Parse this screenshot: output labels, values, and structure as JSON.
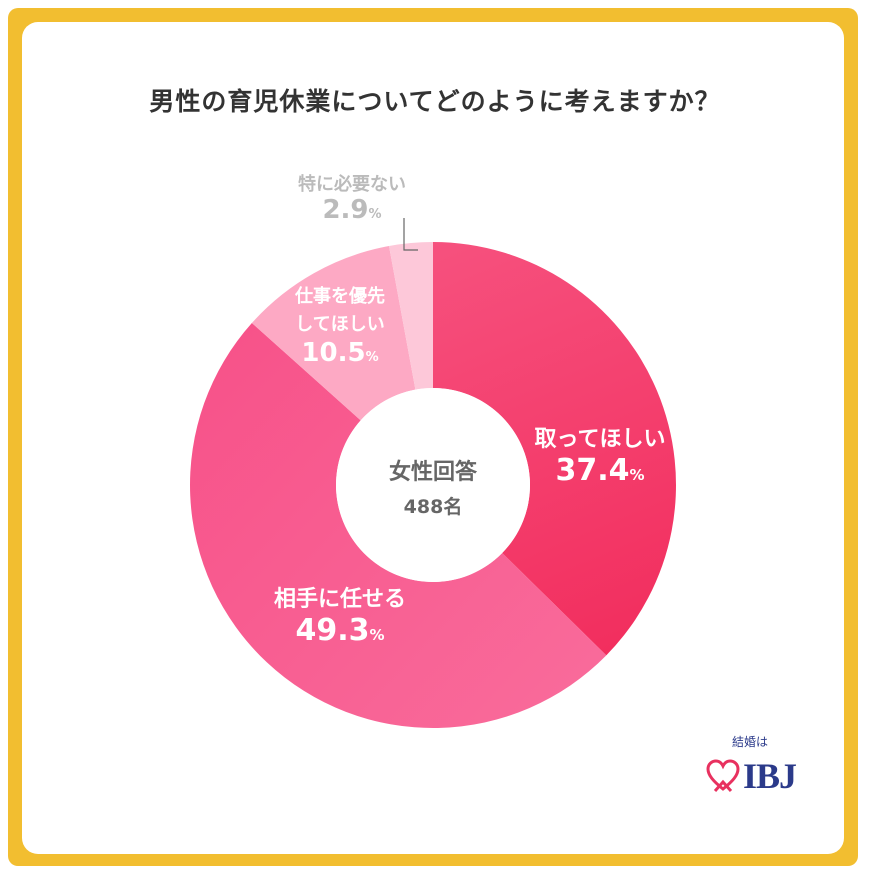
{
  "chart_data": {
    "type": "pie",
    "title": "男性の育児休業についてどのように考えますか？",
    "center_label": [
      "女性回答",
      "488名"
    ],
    "slices": [
      {
        "name_lines": [
          "取ってほしい"
        ],
        "value": 37.4,
        "value_text": "37.4",
        "color_light": "#F6517E",
        "color_dark": "#F22E5E"
      },
      {
        "name_lines": [
          "相手に任せる"
        ],
        "value": 49.3,
        "value_text": "49.3",
        "color_light": "#F96A9A",
        "color_dark": "#F7538A"
      },
      {
        "name_lines": [
          "仕事を優先",
          "してほしい"
        ],
        "value": 10.5,
        "value_text": "10.5",
        "color_light": "#FDA9C4",
        "color_dark": "#FDA9C4"
      },
      {
        "name_lines": [
          "特に必要ない"
        ],
        "value": 2.9,
        "value_text": "2.9",
        "color_light": "#FDC8D9",
        "color_dark": "#FDC8D9"
      }
    ],
    "percent_sign": "%",
    "colors": {
      "frame": "#F2BE30",
      "logo": "#2b3a8a",
      "label_light": "#ffffff",
      "label_outside": "#bbbbbb",
      "center_text": "#666666"
    }
  },
  "logo": {
    "small": "結婚は",
    "main": "IBJ",
    "icon": "heart-icon"
  }
}
